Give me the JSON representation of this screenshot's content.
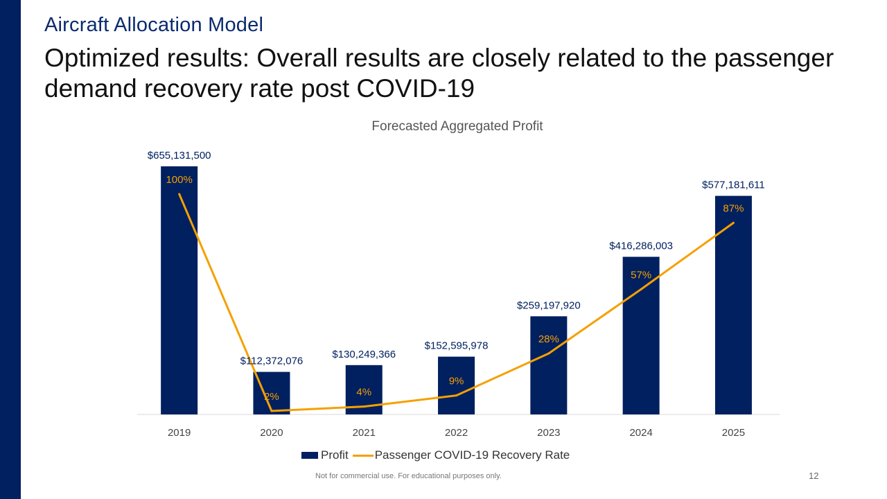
{
  "slide": {
    "kicker": "Aircraft Allocation Model",
    "headline": "Optimized results: Overall results are closely related to the passenger demand recovery rate post COVID-19",
    "footer_note": "Not for commercial use. For educational purposes only.",
    "page_number": "12"
  },
  "colors": {
    "accent": "#002060",
    "line": "#F5A000"
  },
  "chart_data": {
    "type": "bar",
    "title": "Forecasted Aggregated Profit",
    "categories": [
      "2019",
      "2020",
      "2021",
      "2022",
      "2023",
      "2024",
      "2025"
    ],
    "series": [
      {
        "name": "Profit",
        "type": "bar",
        "values": [
          655131500,
          112372076,
          130249366,
          152595978,
          259197920,
          416286003,
          577181611
        ],
        "labels": [
          "$655,131,500",
          "$112,372,076",
          "$130,249,366",
          "$152,595,978",
          "$259,197,920",
          "$416,286,003",
          "$577,181,611"
        ]
      },
      {
        "name": "Passenger COVID-19 Recovery Rate",
        "type": "line",
        "values": [
          100,
          2,
          4,
          9,
          28,
          57,
          87
        ],
        "labels": [
          "100%",
          "2%",
          "4%",
          "9%",
          "28%",
          "57%",
          "87%"
        ]
      }
    ],
    "grid": false,
    "legend": "bottom"
  }
}
